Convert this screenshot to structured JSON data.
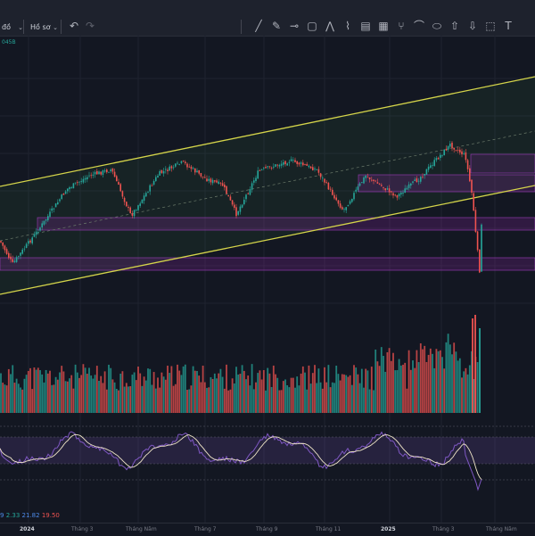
{
  "toolbar": {
    "interval_label": "đồ",
    "profile_label": "Hồ sơ",
    "tools": [
      "line-tool-icon",
      "pencil-tool-icon",
      "horizontal-line-icon",
      "rectangle-icon",
      "zigzag-icon",
      "brush-icon",
      "text-note-icon",
      "grid-icon",
      "fork-icon",
      "path-icon",
      "ellipse-icon",
      "arrow-up-icon",
      "arrow-down-icon",
      "more-icon",
      "text-tool-icon"
    ]
  },
  "volume_label": "045B",
  "oscillator": {
    "values": [
      {
        "text": "9",
        "color": "#4d8ae8"
      },
      {
        "text": "2.33",
        "color": "#26a69a"
      },
      {
        "text": "21.82",
        "color": "#4d8ae8"
      },
      {
        "text": "19.50",
        "color": "#ef5350"
      }
    ]
  },
  "time_axis": {
    "labels": [
      {
        "text": "2024",
        "bold": true
      },
      {
        "text": "Tháng 3",
        "bold": false
      },
      {
        "text": "Tháng Năm",
        "bold": false
      },
      {
        "text": "Tháng 7",
        "bold": false
      },
      {
        "text": "Tháng 9",
        "bold": false
      },
      {
        "text": "Tháng 11",
        "bold": false
      },
      {
        "text": "2025",
        "bold": true
      },
      {
        "text": "Tháng 3",
        "bold": false
      },
      {
        "text": "Tháng Năm",
        "bold": false
      }
    ]
  },
  "colors": {
    "up": "#26a69a",
    "down": "#ef5350",
    "channel": "#d4d44a",
    "zone": "#9c27b0",
    "osc_line": "#7e57c2",
    "osc_signal": "#f0e6c8"
  }
}
